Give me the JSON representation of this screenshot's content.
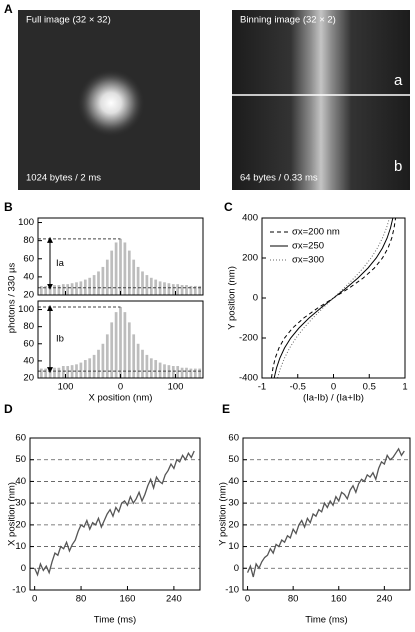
{
  "panel_labels": [
    "A",
    "B",
    "C",
    "D",
    "E"
  ],
  "images": [
    {
      "title": "Full image (32 × 32)",
      "caption": "1024 bytes / 2 ms"
    },
    {
      "title": "Binning image (32 × 2)",
      "caption": "64 bytes / 0.33 ms",
      "regions": [
        "a",
        "b"
      ]
    }
  ],
  "chart_data": [
    {
      "type": "bar",
      "ylabel": "photons / 330 µs",
      "xlabel": "X position (nm)",
      "color": "#bdbdbd",
      "x": [
        -144,
        -136,
        -128,
        -120,
        -112,
        -104,
        -96,
        -88,
        -80,
        -72,
        -64,
        -56,
        -48,
        -40,
        -32,
        -24,
        -16,
        -8,
        0,
        8,
        16,
        24,
        32,
        40,
        48,
        56,
        64,
        72,
        80,
        88,
        96,
        104,
        112,
        120,
        128,
        136,
        144
      ],
      "xlim": [
        -150,
        150
      ],
      "xticks": [
        {
          "value": -100,
          "label": "100"
        },
        0,
        100
      ],
      "subplots": [
        {
          "annotation": "Ia",
          "baseline": 28,
          "ylim": [
            20,
            105
          ],
          "yticks": [
            20,
            40,
            60,
            80,
            100
          ],
          "values": [
            30,
            30,
            30,
            31,
            31,
            32,
            32,
            33,
            34,
            35,
            37,
            39,
            42,
            46,
            51,
            59,
            69,
            78,
            82,
            78,
            69,
            59,
            51,
            46,
            42,
            39,
            37,
            35,
            34,
            33,
            32,
            32,
            31,
            31,
            30,
            30,
            30
          ]
        },
        {
          "annotation": "Ib",
          "baseline": 28,
          "ylim": [
            20,
            110
          ],
          "yticks": [
            20,
            40,
            60,
            80,
            100
          ],
          "values": [
            31,
            31,
            31,
            32,
            32,
            34,
            34,
            35,
            36,
            38,
            41,
            43,
            47,
            53,
            60,
            71,
            85,
            97,
            103,
            97,
            85,
            71,
            60,
            53,
            47,
            43,
            41,
            38,
            36,
            35,
            34,
            34,
            32,
            32,
            31,
            31,
            31
          ]
        }
      ]
    },
    {
      "type": "line",
      "xlabel": "(Ia-Ib) / (Ia+Ib)",
      "ylabel": "Y position (nm)",
      "legend": "upper left",
      "xlim": [
        -1,
        1
      ],
      "xticks": [
        -1,
        -0.5,
        0,
        0.5,
        1
      ],
      "ylim": [
        -400,
        400
      ],
      "yticks": [
        -400,
        -200,
        0,
        200,
        400
      ],
      "y": [
        -400,
        -350,
        -300,
        -250,
        -200,
        -150,
        -100,
        -50,
        0,
        50,
        100,
        150,
        200,
        250,
        300,
        350,
        400
      ],
      "series": [
        {
          "name": "σx=200 nm",
          "color": "#000000",
          "line_style": "dashed",
          "values": [
            -0.868,
            -0.847,
            -0.815,
            -0.763,
            -0.685,
            -0.572,
            -0.416,
            -0.22,
            0,
            0.22,
            0.416,
            0.572,
            0.685,
            0.763,
            0.815,
            0.847,
            0.868
          ]
        },
        {
          "name": "σx=250",
          "color": "#000000",
          "line_style": "solid",
          "values": [
            -0.83,
            -0.797,
            -0.75,
            -0.685,
            -0.598,
            -0.483,
            -0.342,
            -0.178,
            0,
            0.178,
            0.342,
            0.483,
            0.598,
            0.685,
            0.75,
            0.797,
            0.83
          ]
        },
        {
          "name": "σx=300",
          "color": "#666666",
          "line_style": "dotted",
          "values": [
            -0.783,
            -0.741,
            -0.685,
            -0.614,
            -0.525,
            -0.416,
            -0.289,
            -0.149,
            0,
            0.149,
            0.289,
            0.416,
            0.525,
            0.614,
            0.685,
            0.741,
            0.783
          ]
        }
      ]
    },
    {
      "type": "trace",
      "xlabel": "Time (ms)",
      "ylabel": "X position (nm)",
      "color": "#555555",
      "grid": "dashed",
      "xlim": [
        -8,
        285
      ],
      "xticks": [
        0,
        80,
        160,
        240
      ],
      "ylim": [
        -10,
        60
      ],
      "yticks": [
        -10,
        0,
        10,
        20,
        30,
        40,
        50,
        60
      ],
      "x": [
        0,
        5,
        10,
        15,
        20,
        25,
        30,
        35,
        40,
        45,
        50,
        55,
        60,
        65,
        70,
        75,
        80,
        85,
        90,
        95,
        100,
        105,
        110,
        115,
        120,
        125,
        130,
        135,
        140,
        145,
        150,
        155,
        160,
        165,
        170,
        175,
        180,
        185,
        190,
        195,
        200,
        205,
        210,
        215,
        220,
        225,
        230,
        235,
        240,
        245,
        250,
        255,
        260,
        265,
        270,
        275
      ],
      "values": [
        0,
        -3,
        2,
        -1,
        1,
        -2,
        3,
        7,
        6,
        10,
        9,
        12,
        8,
        11,
        13,
        17,
        20,
        19,
        22,
        18,
        21,
        20,
        23,
        19,
        22,
        25,
        27,
        24,
        28,
        26,
        30,
        31,
        29,
        33,
        30,
        32,
        35,
        31,
        34,
        38,
        41,
        37,
        42,
        40,
        39,
        43,
        45,
        48,
        46,
        50,
        49,
        52,
        50,
        53,
        51,
        54
      ]
    },
    {
      "type": "trace",
      "xlabel": "Time (ms)",
      "ylabel": "Y position (nm)",
      "color": "#555555",
      "grid": "dashed",
      "xlim": [
        -8,
        285
      ],
      "xticks": [
        0,
        80,
        160,
        240
      ],
      "ylim": [
        -10,
        60
      ],
      "yticks": [
        -10,
        0,
        10,
        20,
        30,
        40,
        50,
        60
      ],
      "x": [
        0,
        5,
        10,
        15,
        20,
        25,
        30,
        35,
        40,
        45,
        50,
        55,
        60,
        65,
        70,
        75,
        80,
        85,
        90,
        95,
        100,
        105,
        110,
        115,
        120,
        125,
        130,
        135,
        140,
        145,
        150,
        155,
        160,
        165,
        170,
        175,
        180,
        185,
        190,
        195,
        200,
        205,
        210,
        215,
        220,
        225,
        230,
        235,
        240,
        245,
        250,
        255,
        260,
        265,
        270,
        275
      ],
      "values": [
        -2,
        1,
        -4,
        2,
        0,
        3,
        5,
        6,
        9,
        7,
        11,
        10,
        13,
        12,
        15,
        14,
        18,
        16,
        20,
        22,
        19,
        23,
        21,
        25,
        24,
        27,
        26,
        30,
        28,
        31,
        29,
        33,
        31,
        35,
        34,
        32,
        36,
        38,
        35,
        39,
        41,
        40,
        43,
        42,
        44,
        41,
        46,
        49,
        48,
        52,
        50,
        51,
        53,
        55,
        52,
        54
      ]
    }
  ]
}
